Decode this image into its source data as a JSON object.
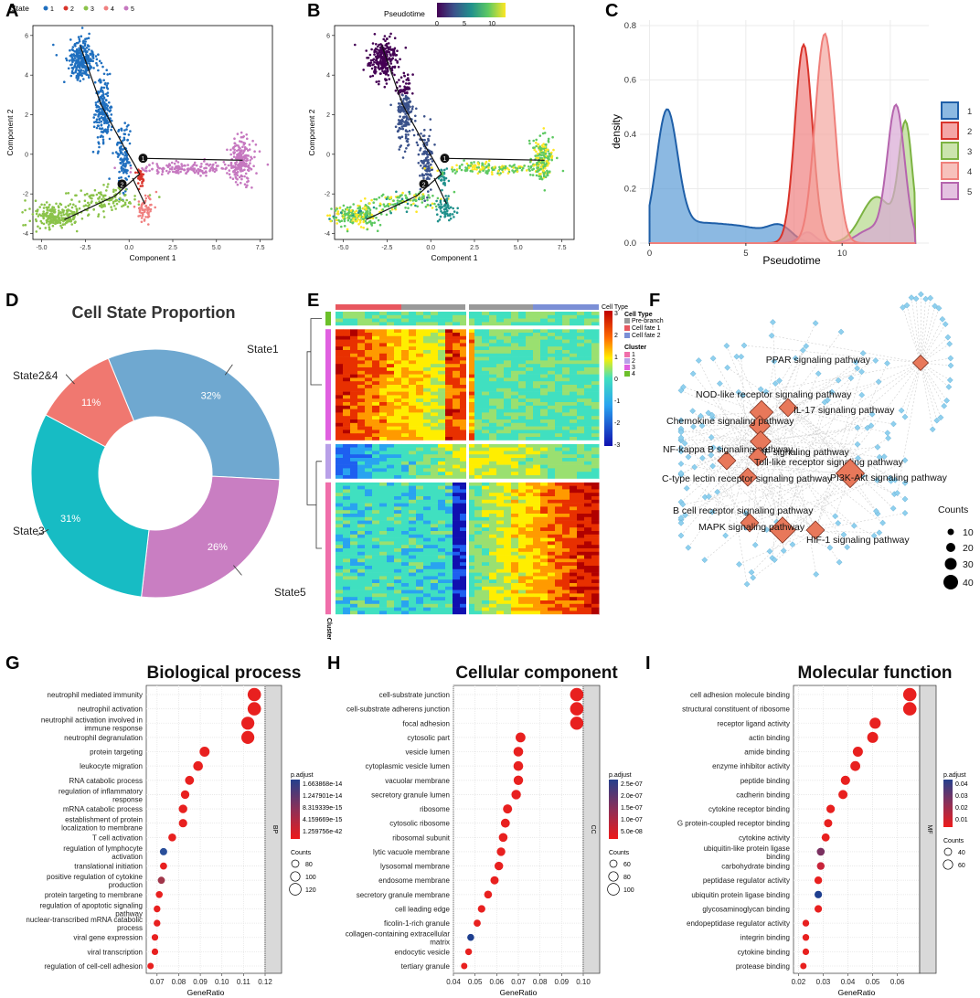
{
  "panel_labels": [
    "A",
    "B",
    "C",
    "D",
    "E",
    "F",
    "G",
    "H",
    "I"
  ],
  "colors": {
    "state1": "#1f6fbf",
    "state2": "#d9342b",
    "state3": "#8bc34a",
    "state4": "#f08080",
    "state5": "#c678c0",
    "pie1": "#6fa8d0",
    "pie24": "#f07870",
    "pie3": "#17bcc4",
    "pie5": "#c97ec2",
    "padj_low": "#e8201f",
    "padj_high": "#1e3f8f",
    "gene_node": "#8fd0ee",
    "pathway_node": "#e8785a"
  },
  "chart_data": [
    {
      "id": "A",
      "type": "scatter",
      "title": "",
      "legend_title": "State",
      "legend_entries": [
        "1",
        "2",
        "3",
        "4",
        "5"
      ],
      "xlabel": "Component 1",
      "ylabel": "Component 2",
      "xlim": [
        -5.5,
        8.2
      ],
      "ylim": [
        -4.3,
        6.5
      ],
      "xticks": [
        "-5.0",
        "-2.5",
        "0.0",
        "2.5",
        "5.0",
        "7.5"
      ],
      "yticks": [
        "-4",
        "-2",
        "0",
        "2",
        "4",
        "6"
      ],
      "branch_points": [
        "1",
        "2"
      ],
      "clusters": [
        {
          "state": "1",
          "center": [
            -2.7,
            4.8
          ],
          "spread": [
            0.4,
            0.5
          ],
          "n": 260
        },
        {
          "state": "1",
          "center": [
            -1.5,
            2.2
          ],
          "spread": [
            0.25,
            0.9
          ],
          "n": 200
        },
        {
          "state": "1",
          "center": [
            -0.3,
            -0.2
          ],
          "spread": [
            0.2,
            0.8
          ],
          "n": 120
        },
        {
          "state": "2",
          "center": [
            0.7,
            -1.2
          ],
          "spread": [
            0.12,
            0.25
          ],
          "n": 30
        },
        {
          "state": "3",
          "center": [
            -4.2,
            -3.1
          ],
          "spread": [
            0.7,
            0.28
          ],
          "n": 220
        },
        {
          "state": "3",
          "center": [
            -1.5,
            -2.3
          ],
          "spread": [
            1.0,
            0.3
          ],
          "n": 120
        },
        {
          "state": "4",
          "center": [
            0.9,
            -2.8
          ],
          "spread": [
            0.25,
            0.3
          ],
          "n": 60
        },
        {
          "state": "5",
          "center": [
            6.4,
            -0.3
          ],
          "spread": [
            0.3,
            0.6
          ],
          "n": 200
        },
        {
          "state": "5",
          "center": [
            3.5,
            -0.7
          ],
          "spread": [
            1.5,
            0.15
          ],
          "n": 160
        }
      ]
    },
    {
      "id": "B",
      "type": "scatter",
      "title": "",
      "legend_title": "Pseudotime",
      "colorbar_ticks": [
        "0",
        "5",
        "10"
      ],
      "xlabel": "Component 1",
      "ylabel": "Component 2",
      "xlim": [
        -5.5,
        8.2
      ],
      "ylim": [
        -4.3,
        6.5
      ],
      "xticks": [
        "-5.0",
        "-2.5",
        "0.0",
        "2.5",
        "5.0",
        "7.5"
      ],
      "yticks": [
        "-4",
        "-2",
        "0",
        "2",
        "4",
        "6"
      ],
      "branch_points": [
        "1",
        "2"
      ]
    },
    {
      "id": "C",
      "type": "area",
      "title": "",
      "xlabel": "Pseudotime",
      "ylabel": "density",
      "xlim": [
        -0.5,
        14.5
      ],
      "ylim": [
        0,
        0.82
      ],
      "xticks": [
        "0",
        "5",
        "10"
      ],
      "yticks": [
        "0.0",
        "0.2",
        "0.4",
        "0.6",
        "0.8"
      ],
      "legend_entries": [
        "1",
        "2",
        "3",
        "4",
        "5"
      ],
      "series": [
        {
          "name": "1",
          "peaks": [
            {
              "mu": 0.9,
              "sd": 0.55,
              "h": 0.45
            },
            {
              "mu": 2.5,
              "sd": 1.6,
              "h": 0.07
            },
            {
              "mu": 5.2,
              "sd": 1.2,
              "h": 0.04
            },
            {
              "mu": 6.8,
              "sd": 0.6,
              "h": 0.05
            }
          ],
          "base": 0.0
        },
        {
          "name": "2",
          "peaks": [
            {
              "mu": 8.0,
              "sd": 0.45,
              "h": 0.73
            }
          ],
          "base": 0.0
        },
        {
          "name": "3",
          "peaks": [
            {
              "mu": 13.3,
              "sd": 0.35,
              "h": 0.42
            },
            {
              "mu": 11.8,
              "sd": 0.8,
              "h": 0.17
            }
          ],
          "base": 0.0
        },
        {
          "name": "4",
          "peaks": [
            {
              "mu": 9.1,
              "sd": 0.5,
              "h": 0.77
            }
          ],
          "base": 0.0
        },
        {
          "name": "5",
          "peaks": [
            {
              "mu": 12.8,
              "sd": 0.45,
              "h": 0.5
            },
            {
              "mu": 8.2,
              "sd": 0.4,
              "h": 0.04
            },
            {
              "mu": 11.5,
              "sd": 0.7,
              "h": 0.05
            }
          ],
          "base": 0.0
        }
      ]
    },
    {
      "id": "D",
      "type": "pie",
      "title": "Cell State Proportion",
      "slices": [
        {
          "label": "State1",
          "value": 32,
          "pct": "32%"
        },
        {
          "label": "State5",
          "value": 26,
          "pct": "26%"
        },
        {
          "label": "State3",
          "value": 31,
          "pct": "31%"
        },
        {
          "label": "State2&4",
          "value": 11,
          "pct": "11%"
        }
      ]
    },
    {
      "id": "E",
      "type": "heatmap",
      "title": "",
      "legend_cell_type_title": "Cell Type",
      "legend_cell_type": [
        "Pre-branch",
        "Cell fate 1",
        "Cell fate 2"
      ],
      "legend_cluster_title": "Cluster",
      "legend_cluster": [
        "1",
        "2",
        "3",
        "4"
      ],
      "colorbar_ticks": [
        "3",
        "2",
        "1",
        "0",
        "-1",
        "-2",
        "-3"
      ],
      "row_annotation_label": "Cluster",
      "header_label": "Cell Type",
      "cluster_blocks": [
        {
          "cluster": "4",
          "rows": 4
        },
        {
          "cluster": "3",
          "rows": 32
        },
        {
          "cluster": "2",
          "rows": 10
        },
        {
          "cluster": "1",
          "rows": 38
        }
      ]
    },
    {
      "id": "F",
      "type": "network",
      "title": "",
      "legend_title": "Counts",
      "legend_sizes": [
        "10",
        "20",
        "30",
        "40"
      ],
      "pathways": [
        "PPAR signaling pathway",
        "NOD-like receptor signaling pathway",
        "IL-17 signaling pathway",
        "Chemokine signaling pathway",
        "TNF signaling pathway",
        "NF-kappa B signaling pathway",
        "Toll-like receptor signaling pathway",
        "C-type lectin receptor signaling pathway",
        "PI3K-Akt signaling pathway",
        "B cell receptor signaling pathway",
        "MAPK signaling pathway",
        "HIF-1 signaling pathway"
      ]
    },
    {
      "id": "G",
      "type": "scatter",
      "title": "Biological process",
      "facet": "BP",
      "xlabel": "GeneRatio",
      "xlim": [
        0.065,
        0.12
      ],
      "xticks": [
        0.07,
        0.08,
        0.09,
        0.1,
        0.11,
        0.12
      ],
      "xticklabels": [
        "0.07",
        "0.08",
        "0.09",
        "0.10",
        "0.11",
        "0.12"
      ],
      "legend_padj_title": "p.adjust",
      "legend_padj": [
        "1.663868e-14",
        "1.247901e-14",
        "8.319339e-15",
        "4.159669e-15",
        "1.259756e-42"
      ],
      "legend_counts_title": "Counts",
      "legend_counts": [
        "80",
        "100",
        "120"
      ],
      "terms": [
        {
          "label": "neutrophil mediated immunity",
          "x": 0.115,
          "counts": 125,
          "color": "#e8201f"
        },
        {
          "label": "neutrophil activation",
          "x": 0.115,
          "counts": 125,
          "color": "#e8201f"
        },
        {
          "label": "neutrophil activation involved in immune response",
          "x": 0.112,
          "counts": 122,
          "color": "#e8201f"
        },
        {
          "label": "neutrophil degranulation",
          "x": 0.112,
          "counts": 122,
          "color": "#e8201f"
        },
        {
          "label": "protein targeting",
          "x": 0.092,
          "counts": 100,
          "color": "#e8201f"
        },
        {
          "label": "leukocyte migration",
          "x": 0.089,
          "counts": 97,
          "color": "#e8201f"
        },
        {
          "label": "RNA catabolic process",
          "x": 0.085,
          "counts": 92,
          "color": "#e8201f"
        },
        {
          "label": "regulation of inflammatory response",
          "x": 0.083,
          "counts": 90,
          "color": "#e8201f"
        },
        {
          "label": "mRNA catabolic process",
          "x": 0.082,
          "counts": 89,
          "color": "#e8201f"
        },
        {
          "label": "establishment of protein localization to membrane",
          "x": 0.082,
          "counts": 88,
          "color": "#e8201f"
        },
        {
          "label": "T cell activation",
          "x": 0.077,
          "counts": 84,
          "color": "#e8201f"
        },
        {
          "label": "regulation of lymphocyte activation",
          "x": 0.073,
          "counts": 80,
          "color": "#2a4f9a"
        },
        {
          "label": "translational initiation",
          "x": 0.073,
          "counts": 79,
          "color": "#e8201f"
        },
        {
          "label": "positive regulation of cytokine production",
          "x": 0.072,
          "counts": 78,
          "color": "#a0364a"
        },
        {
          "label": "protein targeting to membrane",
          "x": 0.071,
          "counts": 77,
          "color": "#e8201f"
        },
        {
          "label": "regulation of apoptotic signaling pathway",
          "x": 0.07,
          "counts": 76,
          "color": "#e8201f"
        },
        {
          "label": "nuclear-transcribed mRNA catabolic process",
          "x": 0.07,
          "counts": 76,
          "color": "#e8201f"
        },
        {
          "label": "viral gene expression",
          "x": 0.069,
          "counts": 75,
          "color": "#e8201f"
        },
        {
          "label": "viral transcription",
          "x": 0.069,
          "counts": 75,
          "color": "#e8201f"
        },
        {
          "label": "regulation of cell-cell adhesion",
          "x": 0.067,
          "counts": 73,
          "color": "#e8201f"
        }
      ]
    },
    {
      "id": "H",
      "type": "scatter",
      "title": "Cellular component",
      "facet": "CC",
      "xlabel": "GeneRatio",
      "xlim": [
        0.04,
        0.1
      ],
      "xticks": [
        0.04,
        0.05,
        0.06,
        0.07,
        0.08,
        0.09,
        0.1
      ],
      "xticklabels": [
        "0.04",
        "0.05",
        "0.06",
        "0.07",
        "0.08",
        "0.09",
        "0.10"
      ],
      "legend_padj_title": "p.adjust",
      "legend_padj": [
        "2.5e-07",
        "2.0e-07",
        "1.5e-07",
        "1.0e-07",
        "5.0e-08"
      ],
      "legend_counts_title": "Counts",
      "legend_counts": [
        "60",
        "80",
        "100"
      ],
      "terms": [
        {
          "label": "cell-substrate junction",
          "x": 0.097,
          "counts": 105,
          "color": "#e8201f"
        },
        {
          "label": "cell-substrate adherens junction",
          "x": 0.097,
          "counts": 105,
          "color": "#e8201f"
        },
        {
          "label": "focal adhesion",
          "x": 0.097,
          "counts": 104,
          "color": "#e8201f"
        },
        {
          "label": "cytosolic part",
          "x": 0.071,
          "counts": 77,
          "color": "#e8201f"
        },
        {
          "label": "vesicle lumen",
          "x": 0.07,
          "counts": 76,
          "color": "#e8201f"
        },
        {
          "label": "cytoplasmic vesicle lumen",
          "x": 0.07,
          "counts": 76,
          "color": "#e8201f"
        },
        {
          "label": "vacuolar membrane",
          "x": 0.07,
          "counts": 75,
          "color": "#e8201f"
        },
        {
          "label": "secretory granule lumen",
          "x": 0.069,
          "counts": 75,
          "color": "#e8201f"
        },
        {
          "label": "ribosome",
          "x": 0.065,
          "counts": 71,
          "color": "#e8201f"
        },
        {
          "label": "cytosolic ribosome",
          "x": 0.064,
          "counts": 70,
          "color": "#e8201f"
        },
        {
          "label": "ribosomal subunit",
          "x": 0.063,
          "counts": 69,
          "color": "#e8201f"
        },
        {
          "label": "lytic vacuole membrane",
          "x": 0.062,
          "counts": 68,
          "color": "#e8201f"
        },
        {
          "label": "lysosomal membrane",
          "x": 0.061,
          "counts": 67,
          "color": "#e8201f"
        },
        {
          "label": "endosome membrane",
          "x": 0.059,
          "counts": 65,
          "color": "#e8201f"
        },
        {
          "label": "secretory granule membrane",
          "x": 0.056,
          "counts": 62,
          "color": "#e8201f"
        },
        {
          "label": "cell leading edge",
          "x": 0.053,
          "counts": 58,
          "color": "#e8201f"
        },
        {
          "label": "ficolin-1-rich granule",
          "x": 0.051,
          "counts": 56,
          "color": "#e8201f"
        },
        {
          "label": "collagen-containing extracellular matrix",
          "x": 0.048,
          "counts": 54,
          "color": "#1e3f8f"
        },
        {
          "label": "endocytic vesicle",
          "x": 0.047,
          "counts": 53,
          "color": "#e8201f"
        },
        {
          "label": "tertiary granule",
          "x": 0.045,
          "counts": 50,
          "color": "#e8201f"
        }
      ]
    },
    {
      "id": "I",
      "type": "scatter",
      "title": "Molecular function",
      "facet": "MF",
      "xlabel": "GeneRatio",
      "xlim": [
        0.018,
        0.069
      ],
      "xticks": [
        0.02,
        0.03,
        0.04,
        0.05,
        0.06
      ],
      "xticklabels": [
        "0.02",
        "0.03",
        "0.04",
        "0.05",
        "0.06"
      ],
      "legend_padj_title": "p.adjust",
      "legend_padj": [
        "0.04",
        "0.03",
        "0.02",
        "0.01"
      ],
      "legend_counts_title": "Counts",
      "legend_counts": [
        "40",
        "60"
      ],
      "terms": [
        {
          "label": "cell adhesion molecule binding",
          "x": 0.065,
          "counts": 70,
          "color": "#e8201f"
        },
        {
          "label": "structural constituent of ribosome",
          "x": 0.065,
          "counts": 70,
          "color": "#e8201f"
        },
        {
          "label": "receptor ligand activity",
          "x": 0.051,
          "counts": 56,
          "color": "#e8201f"
        },
        {
          "label": "actin binding",
          "x": 0.05,
          "counts": 55,
          "color": "#e8201f"
        },
        {
          "label": "amide binding",
          "x": 0.044,
          "counts": 49,
          "color": "#e8201f"
        },
        {
          "label": "enzyme inhibitor activity",
          "x": 0.043,
          "counts": 48,
          "color": "#e8201f"
        },
        {
          "label": "peptide binding",
          "x": 0.039,
          "counts": 44,
          "color": "#e8201f"
        },
        {
          "label": "cadherin binding",
          "x": 0.038,
          "counts": 43,
          "color": "#e8201f"
        },
        {
          "label": "cytokine receptor binding",
          "x": 0.033,
          "counts": 38,
          "color": "#e8201f"
        },
        {
          "label": "G protein-coupled receptor binding",
          "x": 0.032,
          "counts": 37,
          "color": "#e8201f"
        },
        {
          "label": "cytokine activity",
          "x": 0.031,
          "counts": 36,
          "color": "#e8201f"
        },
        {
          "label": "ubiquitin-like protein ligase binding",
          "x": 0.029,
          "counts": 34,
          "color": "#7a3060"
        },
        {
          "label": "carbohydrate binding",
          "x": 0.029,
          "counts": 33,
          "color": "#c8243a"
        },
        {
          "label": "peptidase regulator activity",
          "x": 0.028,
          "counts": 33,
          "color": "#e8201f"
        },
        {
          "label": "ubiquitin protein ligase binding",
          "x": 0.028,
          "counts": 32,
          "color": "#1e3f8f"
        },
        {
          "label": "glycosaminoglycan binding",
          "x": 0.028,
          "counts": 32,
          "color": "#e8201f"
        },
        {
          "label": "endopeptidase regulator activity",
          "x": 0.023,
          "counts": 27,
          "color": "#e8201f"
        },
        {
          "label": "integrin binding",
          "x": 0.023,
          "counts": 27,
          "color": "#e8201f"
        },
        {
          "label": "cytokine binding",
          "x": 0.023,
          "counts": 26,
          "color": "#e8201f"
        },
        {
          "label": "protease binding",
          "x": 0.022,
          "counts": 25,
          "color": "#e8201f"
        }
      ]
    }
  ]
}
